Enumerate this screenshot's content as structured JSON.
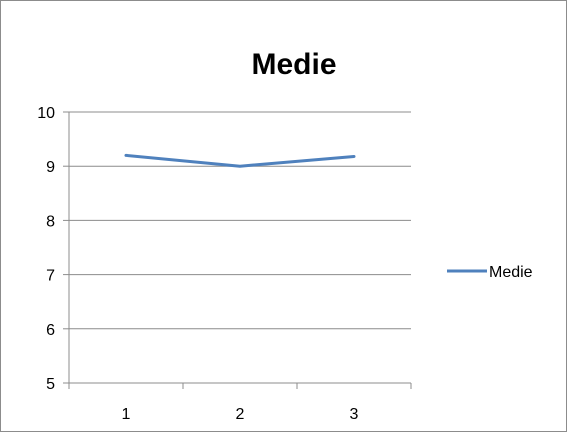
{
  "chart_data": {
    "type": "line",
    "title": "Medie",
    "xlabel": "",
    "ylabel": "",
    "x": [
      "1",
      "2",
      "3"
    ],
    "ylim": [
      5,
      10
    ],
    "yticks": [
      5,
      6,
      7,
      8,
      9,
      10
    ],
    "grid": true,
    "legend_position": "right",
    "series": [
      {
        "name": "Medie",
        "color": "#4f81bd",
        "values": [
          9.2,
          9.0,
          9.18
        ]
      }
    ]
  }
}
